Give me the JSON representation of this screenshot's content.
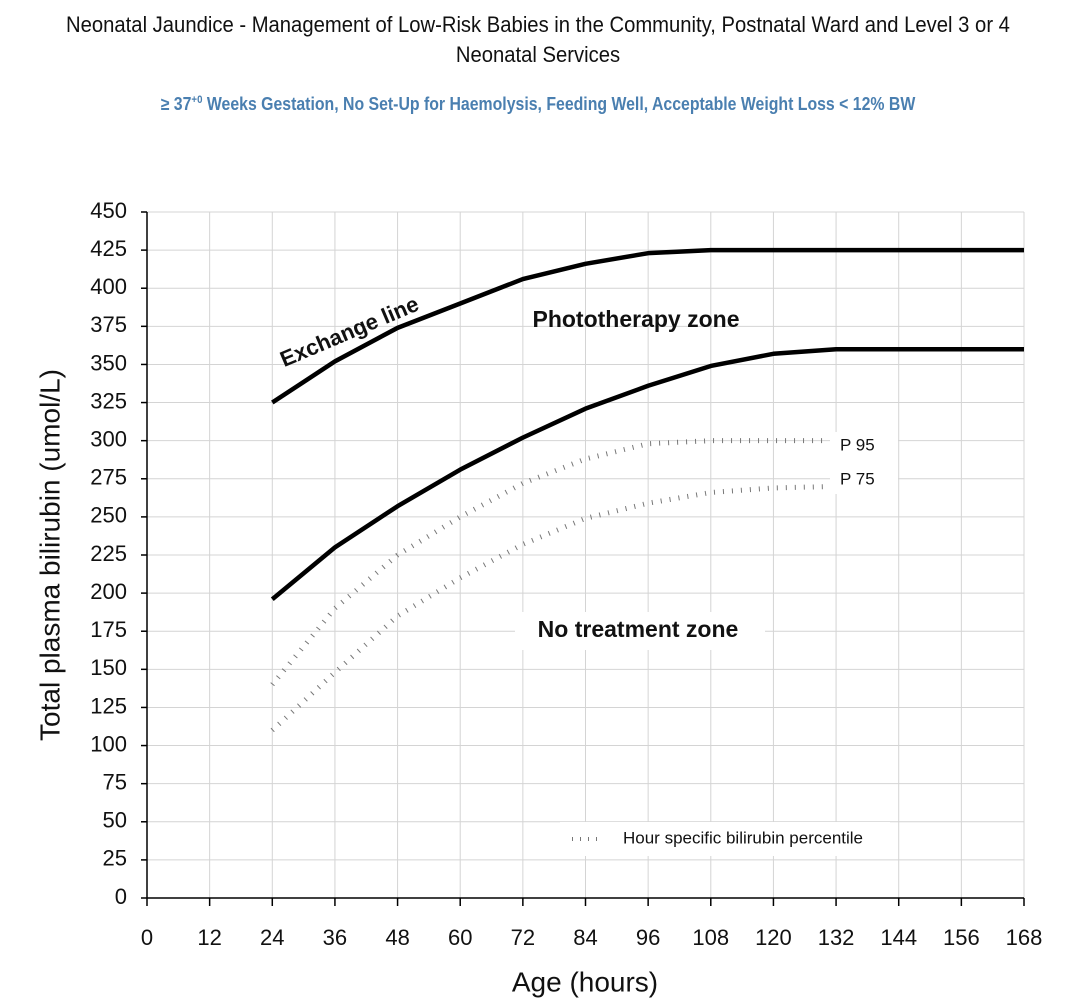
{
  "chart_data": {
    "type": "line",
    "title": "Neonatal Jaundice - Management of Low-Risk Babies in the Community, Postnatal Ward and Level 3 or 4 Neonatal Services",
    "subtitle": [
      "≥ 37",
      "+0",
      " Weeks Gestation, No Set-Up for Haemolysis, Feeding Well, Acceptable Weight Loss < 12% BW"
    ],
    "y_label": "Total plasma bilirubin (umol/L)",
    "x_label": "Age (hours)",
    "x": [
      24,
      36,
      48,
      60,
      72,
      84,
      96,
      108,
      120,
      132,
      144,
      156,
      168
    ],
    "series": [
      {
        "name": "Exchange line",
        "color": "#000000",
        "style": "solid",
        "values": [
          325,
          352,
          374,
          390,
          406,
          416,
          423,
          425,
          425,
          425,
          425,
          425,
          425
        ]
      },
      {
        "color": "#000000",
        "style": "solid",
        "values": [
          196,
          230,
          257,
          281,
          302,
          321,
          336,
          349,
          357,
          360,
          360,
          360,
          360
        ]
      },
      {
        "name": "P 95",
        "color": "#777777",
        "style": "dotted",
        "values": [
          140,
          190,
          225,
          250,
          272,
          288,
          298,
          300,
          300,
          300,
          null,
          null,
          null
        ]
      },
      {
        "name": "P 75",
        "color": "#777777",
        "style": "dotted",
        "values": [
          110,
          148,
          185,
          210,
          232,
          249,
          259,
          266,
          269,
          270,
          null,
          null,
          null
        ]
      }
    ],
    "annotations": [
      "Phototherapy zone",
      "No treatment zone"
    ],
    "legend": "Hour specific bilirubin percentile",
    "xlim": [
      0,
      168
    ],
    "xticks": [
      0,
      12,
      24,
      36,
      48,
      60,
      72,
      84,
      96,
      108,
      120,
      132,
      144,
      156,
      168
    ],
    "ylim": [
      0,
      450
    ],
    "yticks": [
      0,
      25,
      50,
      75,
      100,
      125,
      150,
      175,
      200,
      225,
      250,
      275,
      300,
      325,
      350,
      375,
      400,
      425,
      450
    ],
    "grid": true
  }
}
